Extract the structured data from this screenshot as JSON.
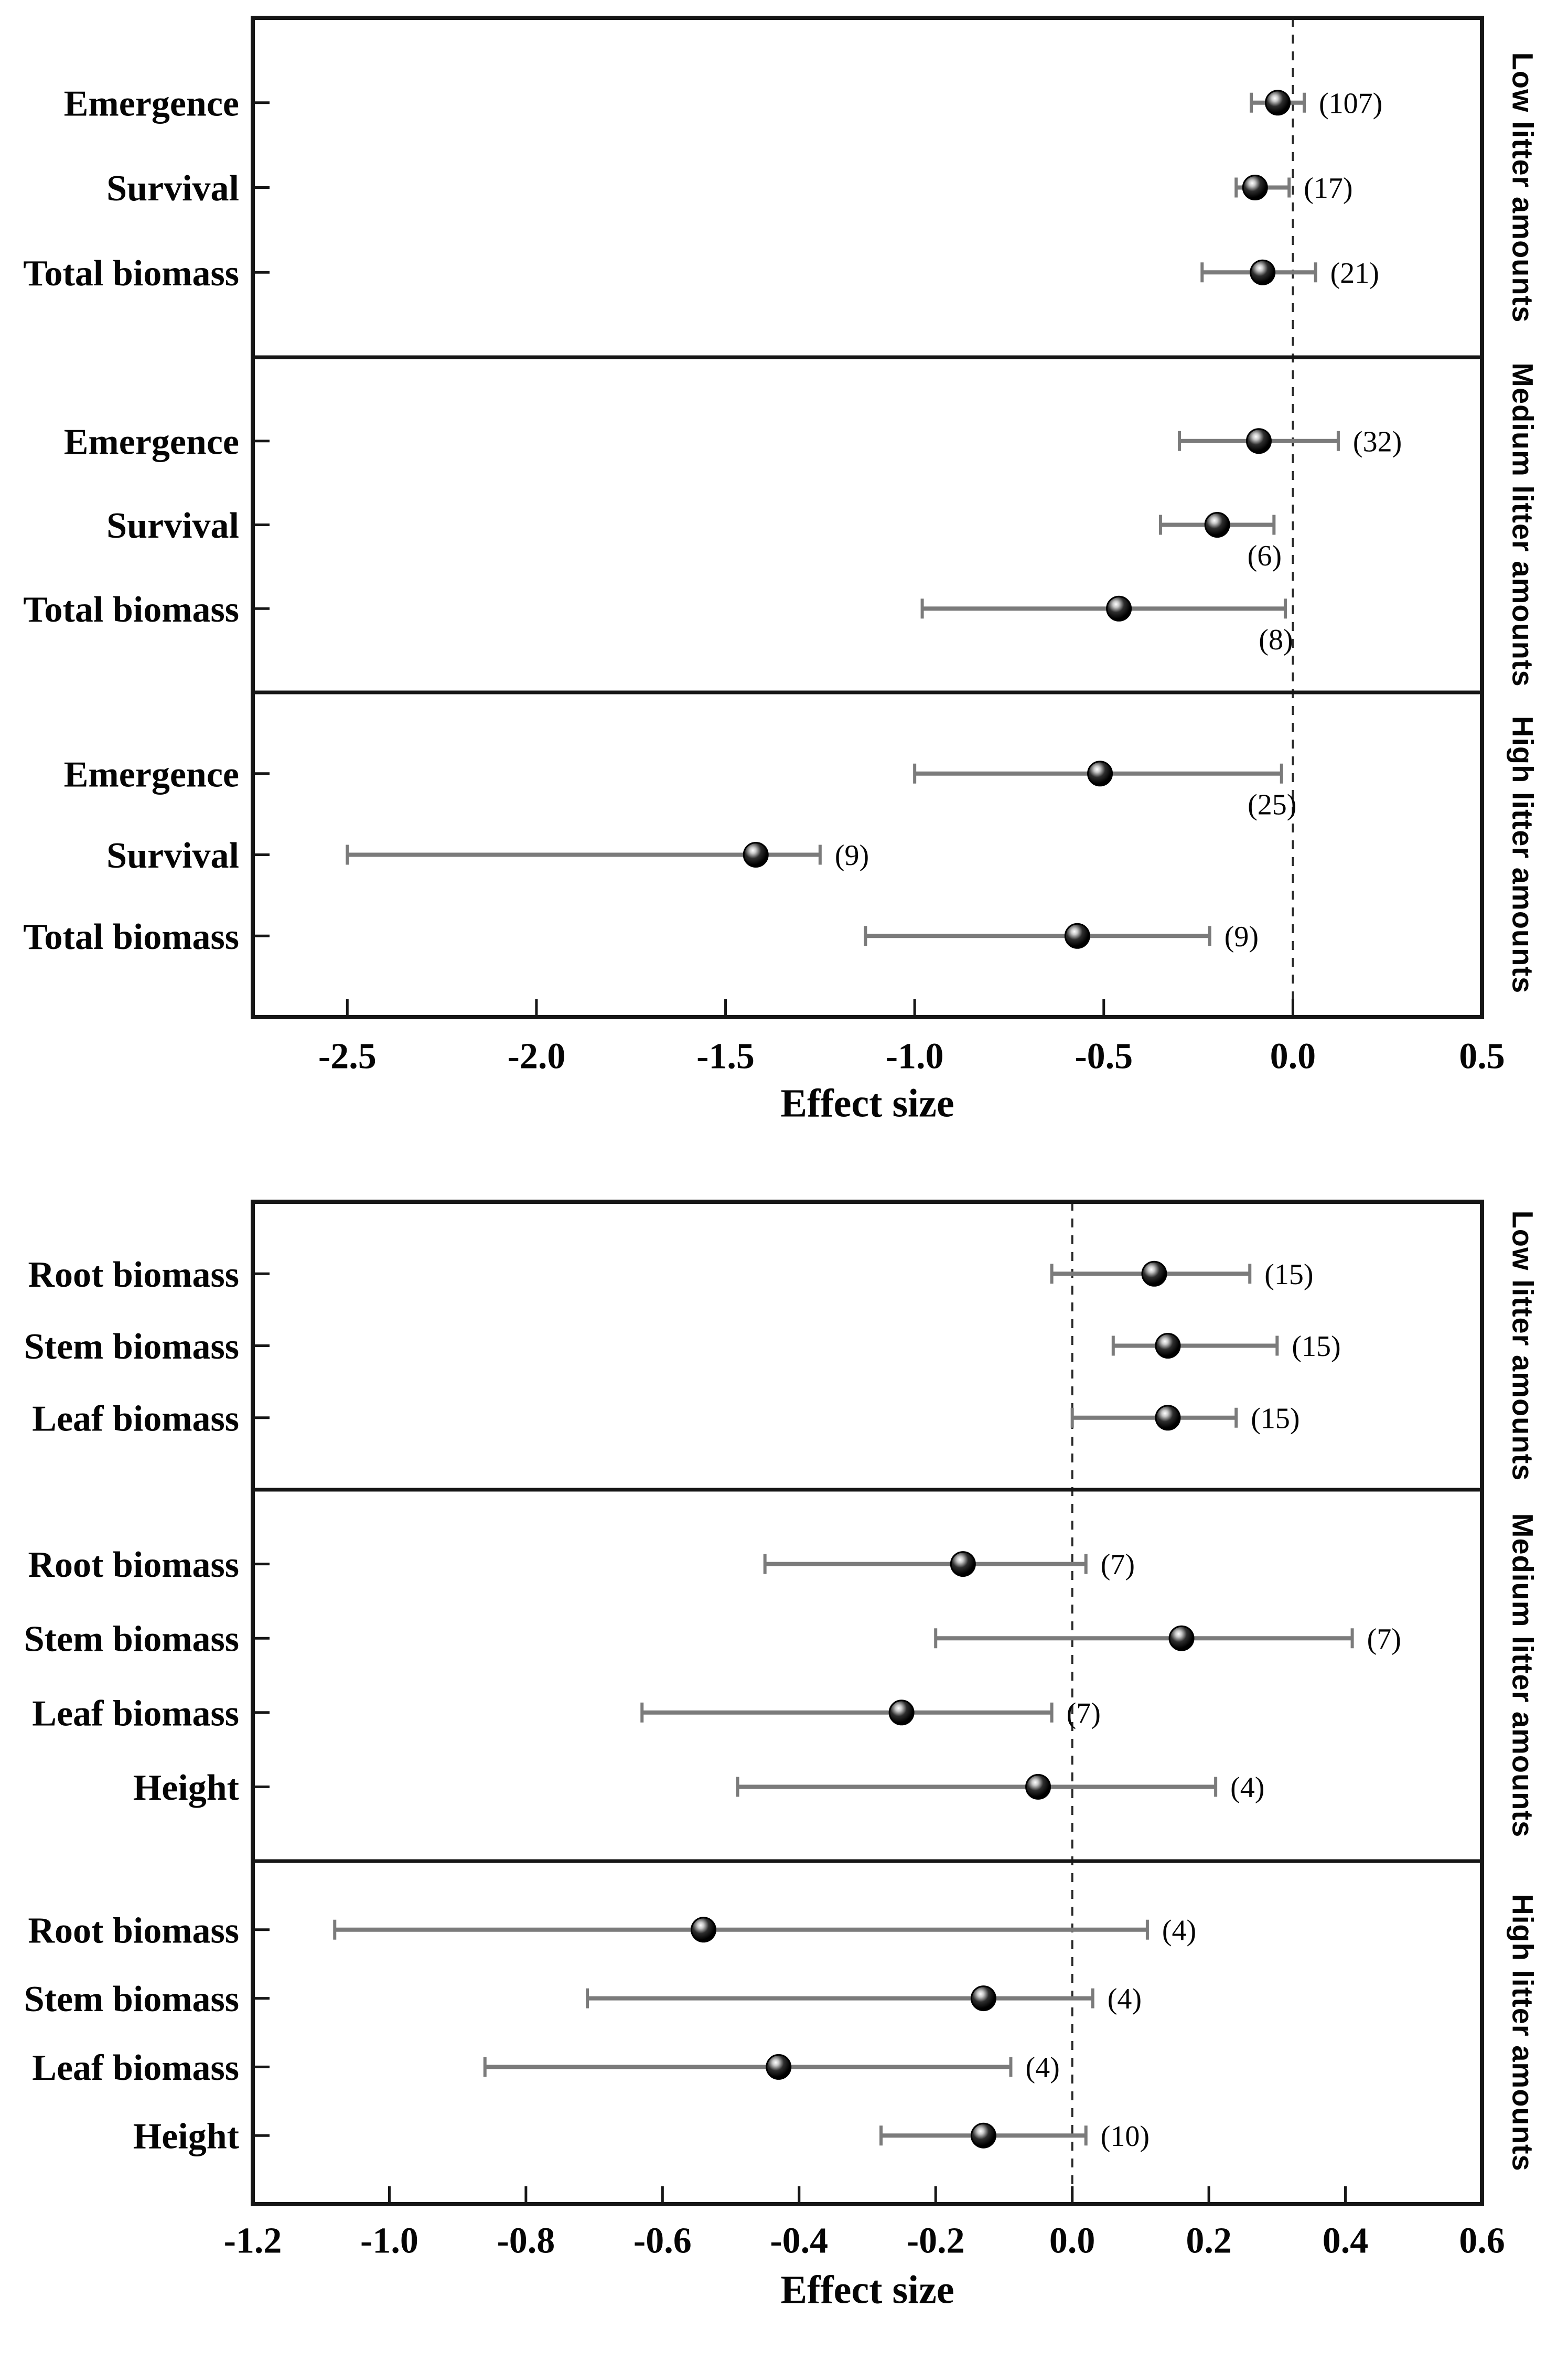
{
  "figure": {
    "background": "#ffffff",
    "text_color": "#050505",
    "frame_color": "#161616",
    "marker_color": "#000000",
    "error_bar_color": "#7b7b7b",
    "zero_line_color": "#2b2b2b"
  },
  "chart_data": [
    {
      "id": "seedling-performance-forest-plot",
      "type": "forest",
      "xlabel": "Effect size",
      "xlim": [
        -2.75,
        0.5
      ],
      "zero_line": 0,
      "grid": false,
      "x_ticks": [
        {
          "value": -2.5,
          "label": "-2.5"
        },
        {
          "value": -2.0,
          "label": "-2.0"
        },
        {
          "value": -1.5,
          "label": "-1.5"
        },
        {
          "value": -1.0,
          "label": "-1.0"
        },
        {
          "value": -0.5,
          "label": "-0.5"
        },
        {
          "value": 0.0,
          "label": "0.0"
        },
        {
          "value": 0.5,
          "label": "0.5"
        }
      ],
      "panels": [
        {
          "label": "Low litter amounts",
          "rows": [
            {
              "category": "Emergence",
              "mean": -0.04,
              "ci_low": -0.11,
              "ci_high": 0.03,
              "n": 107,
              "n_label": "(107)",
              "n_label_position": "right"
            },
            {
              "category": "Survival",
              "mean": -0.1,
              "ci_low": -0.15,
              "ci_high": -0.01,
              "n": 17,
              "n_label": "(17)",
              "n_label_position": "right"
            },
            {
              "category": "Total biomass",
              "mean": -0.08,
              "ci_low": -0.24,
              "ci_high": 0.06,
              "n": 21,
              "n_label": "(21)",
              "n_label_position": "right"
            }
          ]
        },
        {
          "label": "Medium litter amounts",
          "rows": [
            {
              "category": "Emergence",
              "mean": -0.09,
              "ci_low": -0.3,
              "ci_high": 0.12,
              "n": 32,
              "n_label": "(32)",
              "n_label_position": "right"
            },
            {
              "category": "Survival",
              "mean": -0.2,
              "ci_low": -0.35,
              "ci_high": -0.05,
              "n": 6,
              "n_label": "(6)",
              "n_label_position": "below"
            },
            {
              "category": "Total biomass",
              "mean": -0.46,
              "ci_low": -0.98,
              "ci_high": -0.02,
              "n": 8,
              "n_label": "(8)",
              "n_label_position": "below"
            }
          ]
        },
        {
          "label": "High litter amounts",
          "rows": [
            {
              "category": "Emergence",
              "mean": -0.51,
              "ci_low": -1.0,
              "ci_high": -0.03,
              "n": 25,
              "n_label": "(25)",
              "n_label_position": "below"
            },
            {
              "category": "Survival",
              "mean": -1.42,
              "ci_low": -2.5,
              "ci_high": -1.25,
              "n": 9,
              "n_label": "(9)",
              "n_label_position": "right"
            },
            {
              "category": "Total biomass",
              "mean": -0.57,
              "ci_low": -1.13,
              "ci_high": -0.22,
              "n": 9,
              "n_label": "(9)",
              "n_label_position": "right"
            }
          ]
        }
      ]
    },
    {
      "id": "seedling-growth-forest-plot",
      "type": "forest",
      "xlabel": "Effect size",
      "xlim": [
        -1.2,
        0.6
      ],
      "zero_line": 0,
      "grid": false,
      "x_ticks": [
        {
          "value": -1.2,
          "label": "-1.2"
        },
        {
          "value": -1.0,
          "label": "-1.0"
        },
        {
          "value": -0.8,
          "label": "-0.8"
        },
        {
          "value": -0.6,
          "label": "-0.6"
        },
        {
          "value": -0.4,
          "label": "-0.4"
        },
        {
          "value": -0.2,
          "label": "-0.2"
        },
        {
          "value": 0.0,
          "label": "0.0"
        },
        {
          "value": 0.2,
          "label": "0.2"
        },
        {
          "value": 0.4,
          "label": "0.4"
        },
        {
          "value": 0.6,
          "label": "0.6"
        }
      ],
      "panels": [
        {
          "label": "Low litter amounts",
          "rows": [
            {
              "category": "Root biomass",
              "mean": 0.12,
              "ci_low": -0.03,
              "ci_high": 0.26,
              "n": 15,
              "n_label": "(15)",
              "n_label_position": "right"
            },
            {
              "category": "Stem biomass",
              "mean": 0.14,
              "ci_low": 0.06,
              "ci_high": 0.3,
              "n": 15,
              "n_label": "(15)",
              "n_label_position": "right"
            },
            {
              "category": "Leaf biomass",
              "mean": 0.14,
              "ci_low": 0.0,
              "ci_high": 0.24,
              "n": 15,
              "n_label": "(15)",
              "n_label_position": "right"
            }
          ]
        },
        {
          "label": "Medium litter amounts",
          "rows": [
            {
              "category": "Root biomass",
              "mean": -0.16,
              "ci_low": -0.45,
              "ci_high": 0.02,
              "n": 7,
              "n_label": "(7)",
              "n_label_position": "right"
            },
            {
              "category": "Stem biomass",
              "mean": 0.16,
              "ci_low": -0.2,
              "ci_high": 0.41,
              "n": 7,
              "n_label": "(7)",
              "n_label_position": "right"
            },
            {
              "category": "Leaf biomass",
              "mean": -0.25,
              "ci_low": -0.63,
              "ci_high": -0.03,
              "n": 7,
              "n_label": "(7)",
              "n_label_position": "right"
            },
            {
              "category": "Height",
              "mean": -0.05,
              "ci_low": -0.49,
              "ci_high": 0.21,
              "n": 4,
              "n_label": "(4)",
              "n_label_position": "right"
            }
          ]
        },
        {
          "label": "High litter amounts",
          "rows": [
            {
              "category": "Root biomass",
              "mean": -0.54,
              "ci_low": -1.08,
              "ci_high": 0.11,
              "n": 4,
              "n_label": "(4)",
              "n_label_position": "right"
            },
            {
              "category": "Stem biomass",
              "mean": -0.13,
              "ci_low": -0.71,
              "ci_high": 0.03,
              "n": 4,
              "n_label": "(4)",
              "n_label_position": "right"
            },
            {
              "category": "Leaf biomass",
              "mean": -0.43,
              "ci_low": -0.86,
              "ci_high": -0.09,
              "n": 4,
              "n_label": "(4)",
              "n_label_position": "right"
            },
            {
              "category": "Height",
              "mean": -0.13,
              "ci_low": -0.28,
              "ci_high": 0.02,
              "n": 10,
              "n_label": "(10)",
              "n_label_position": "right"
            }
          ]
        }
      ]
    }
  ]
}
